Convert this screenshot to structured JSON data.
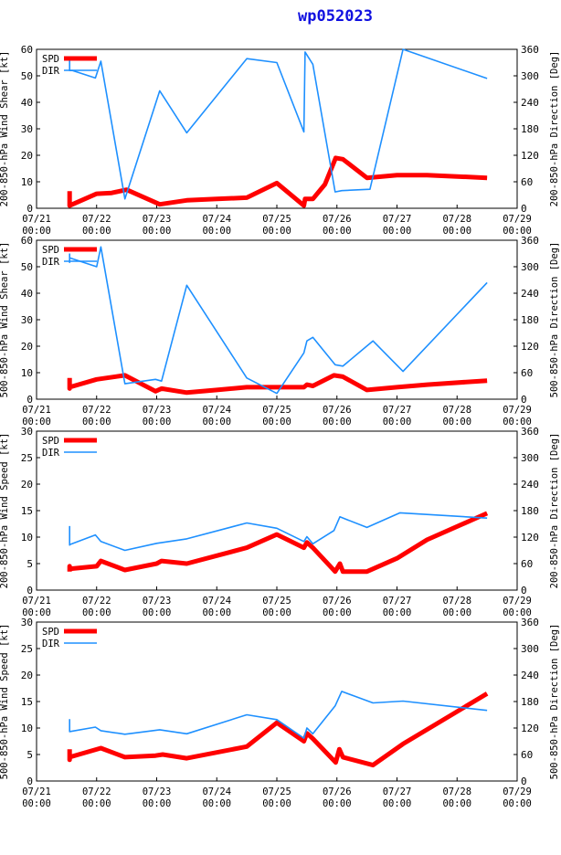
{
  "title": "wp052023",
  "colors": {
    "spd": "#ff0000",
    "dir": "#1e90ff",
    "axis": "#000000",
    "title": "#1010e0"
  },
  "x_ticks": [
    "07/21\n00:00",
    "07/22\n00:00",
    "07/23\n00:00",
    "07/24\n00:00",
    "07/25\n00:00",
    "07/26\n00:00",
    "07/27\n00:00",
    "07/28\n00:00",
    "07/29\n00:00"
  ],
  "legend": {
    "spd": "SPD",
    "dir": "DIR"
  },
  "chart_data": [
    {
      "type": "line",
      "title": "",
      "ylabel_left": "200-850-hPa Wind Shear [kt]",
      "ylabel_right": "200-850-hPa Direction [Deg]",
      "xlabel": "",
      "xlim": [
        0,
        8
      ],
      "ylim_left": [
        0,
        60
      ],
      "ylim_right": [
        0,
        360
      ],
      "left_ticks": [
        0,
        10,
        20,
        30,
        40,
        50,
        60
      ],
      "right_ticks": [
        0,
        60,
        120,
        180,
        240,
        300,
        360
      ],
      "series": [
        {
          "name": "SPD",
          "axis": "left",
          "x": [
            0.55,
            0.55,
            0.55,
            1.0,
            1.25,
            1.5,
            2.05,
            2.5,
            3.0,
            3.5,
            4.0,
            4.45,
            4.47,
            4.55,
            4.6,
            4.8,
            4.98,
            5.1,
            5.5,
            6.0,
            6.5,
            7.0,
            7.5
          ],
          "values": [
            6.5,
            1.0,
            1.0,
            5.5,
            5.8,
            7.0,
            1.5,
            3.0,
            3.5,
            4.0,
            9.5,
            1.0,
            3.5,
            3.5,
            3.5,
            9.0,
            19.0,
            18.5,
            11.5,
            12.5,
            12.5,
            12.0,
            11.5
          ]
        },
        {
          "name": "DIR",
          "axis": "right",
          "x": [
            0.55,
            0.55,
            0.55,
            0.6,
            0.98,
            1.07,
            1.47,
            2.05,
            2.5,
            3.5,
            4.0,
            4.45,
            4.47,
            4.52,
            4.6,
            4.97,
            5.08,
            5.55,
            6.1,
            7.5
          ],
          "values": [
            320,
            340,
            312,
            312,
            295,
            333,
            21,
            266,
            171,
            339,
            330,
            173,
            354,
            343,
            326,
            37,
            40,
            43,
            360,
            294
          ]
        }
      ]
    },
    {
      "type": "line",
      "title": "",
      "ylabel_left": "500-850-hPa Wind Shear [kt]",
      "ylabel_right": "500-850-hPa Direction [Deg]",
      "xlabel": "",
      "xlim": [
        0,
        8
      ],
      "ylim_left": [
        0,
        60
      ],
      "ylim_right": [
        0,
        360
      ],
      "left_ticks": [
        0,
        10,
        20,
        30,
        40,
        50,
        60
      ],
      "right_ticks": [
        0,
        60,
        120,
        180,
        240,
        300,
        360
      ],
      "series": [
        {
          "name": "SPD",
          "axis": "left",
          "x": [
            0.55,
            0.55,
            0.55,
            1.0,
            1.47,
            1.98,
            2.08,
            2.5,
            3.0,
            3.5,
            4.0,
            4.45,
            4.5,
            4.6,
            4.95,
            5.1,
            5.5,
            6.0,
            6.5,
            7.5
          ],
          "values": [
            8.0,
            4.0,
            4.5,
            7.5,
            9.0,
            3.0,
            4.0,
            2.5,
            3.5,
            4.5,
            4.5,
            4.5,
            5.5,
            5.0,
            9.0,
            8.5,
            3.5,
            4.5,
            5.5,
            7.0
          ]
        },
        {
          "name": "DIR",
          "axis": "right",
          "x": [
            0.55,
            0.55,
            0.55,
            1.0,
            1.07,
            1.47,
            1.98,
            2.08,
            2.5,
            3.5,
            4.0,
            4.45,
            4.5,
            4.6,
            4.97,
            5.1,
            5.6,
            6.1,
            7.5
          ],
          "values": [
            330,
            310,
            320,
            300,
            345,
            35,
            45,
            41,
            258,
            48,
            13,
            105,
            132,
            140,
            78,
            75,
            132,
            63,
            264
          ]
        }
      ]
    },
    {
      "type": "line",
      "title": "",
      "ylabel_left": "200-850-hPa Wind Speed [kt]",
      "ylabel_right": "200-850-hPa Direction [Deg]",
      "xlabel": "",
      "xlim": [
        0,
        8
      ],
      "ylim_left": [
        0,
        30
      ],
      "ylim_right": [
        0,
        360
      ],
      "left_ticks": [
        0,
        5,
        10,
        15,
        20,
        25,
        30
      ],
      "right_ticks": [
        0,
        60,
        120,
        180,
        240,
        300,
        360
      ],
      "series": [
        {
          "name": "SPD",
          "axis": "left",
          "x": [
            0.55,
            0.55,
            0.55,
            1.0,
            1.07,
            1.47,
            2.0,
            2.08,
            2.5,
            3.0,
            3.5,
            4.0,
            4.45,
            4.5,
            4.6,
            4.97,
            5.05,
            5.1,
            5.5,
            6.0,
            6.5,
            7.5
          ],
          "values": [
            3.5,
            4.5,
            4.0,
            4.5,
            5.5,
            3.8,
            5.0,
            5.5,
            5.0,
            6.5,
            8.0,
            10.5,
            8.0,
            9.0,
            8.0,
            3.5,
            5.0,
            3.5,
            3.5,
            6.0,
            9.5,
            14.5
          ],
          "stroke": "thick"
        },
        {
          "name": "DIR",
          "axis": "right",
          "x": [
            0.55,
            0.55,
            0.55,
            0.98,
            1.07,
            1.47,
            2.0,
            2.5,
            3.5,
            4.0,
            4.45,
            4.5,
            4.6,
            4.95,
            5.05,
            5.5,
            6.05,
            7.5
          ],
          "values": [
            145,
            102,
            103,
            125,
            110,
            90,
            106,
            116,
            152,
            140,
            110,
            121,
            105,
            135,
            166,
            142,
            175,
            163
          ]
        }
      ]
    },
    {
      "type": "line",
      "title": "",
      "ylabel_left": "500-850-hPa Wind Speed [kt]",
      "ylabel_right": "500-850-hPa Direction [Deg]",
      "xlabel": "",
      "xlim": [
        0,
        8
      ],
      "ylim_left": [
        0,
        30
      ],
      "ylim_right": [
        0,
        360
      ],
      "left_ticks": [
        0,
        5,
        10,
        15,
        20,
        25,
        30
      ],
      "right_ticks": [
        0,
        60,
        120,
        180,
        240,
        300,
        360
      ],
      "series": [
        {
          "name": "SPD",
          "axis": "left",
          "x": [
            0.55,
            0.55,
            0.55,
            1.07,
            1.47,
            1.98,
            2.1,
            2.5,
            3.5,
            4.0,
            4.45,
            4.5,
            4.6,
            4.98,
            5.04,
            5.1,
            5.6,
            6.1,
            7.5
          ],
          "values": [
            6.0,
            4.0,
            4.5,
            6.2,
            4.5,
            4.8,
            5.0,
            4.3,
            6.5,
            11.0,
            7.5,
            9.0,
            8.0,
            3.5,
            6.0,
            4.5,
            3.0,
            7.0,
            16.5
          ]
        },
        {
          "name": "DIR",
          "axis": "right",
          "x": [
            0.55,
            0.55,
            0.55,
            0.98,
            1.07,
            1.47,
            2.05,
            2.5,
            3.5,
            4.0,
            4.45,
            4.5,
            4.6,
            4.97,
            5.08,
            5.6,
            6.1,
            7.5
          ],
          "values": [
            140,
            112,
            112,
            122,
            114,
            106,
            116,
            107,
            150,
            139,
            97,
            120,
            107,
            170,
            203,
            177,
            181,
            160
          ]
        }
      ]
    }
  ]
}
